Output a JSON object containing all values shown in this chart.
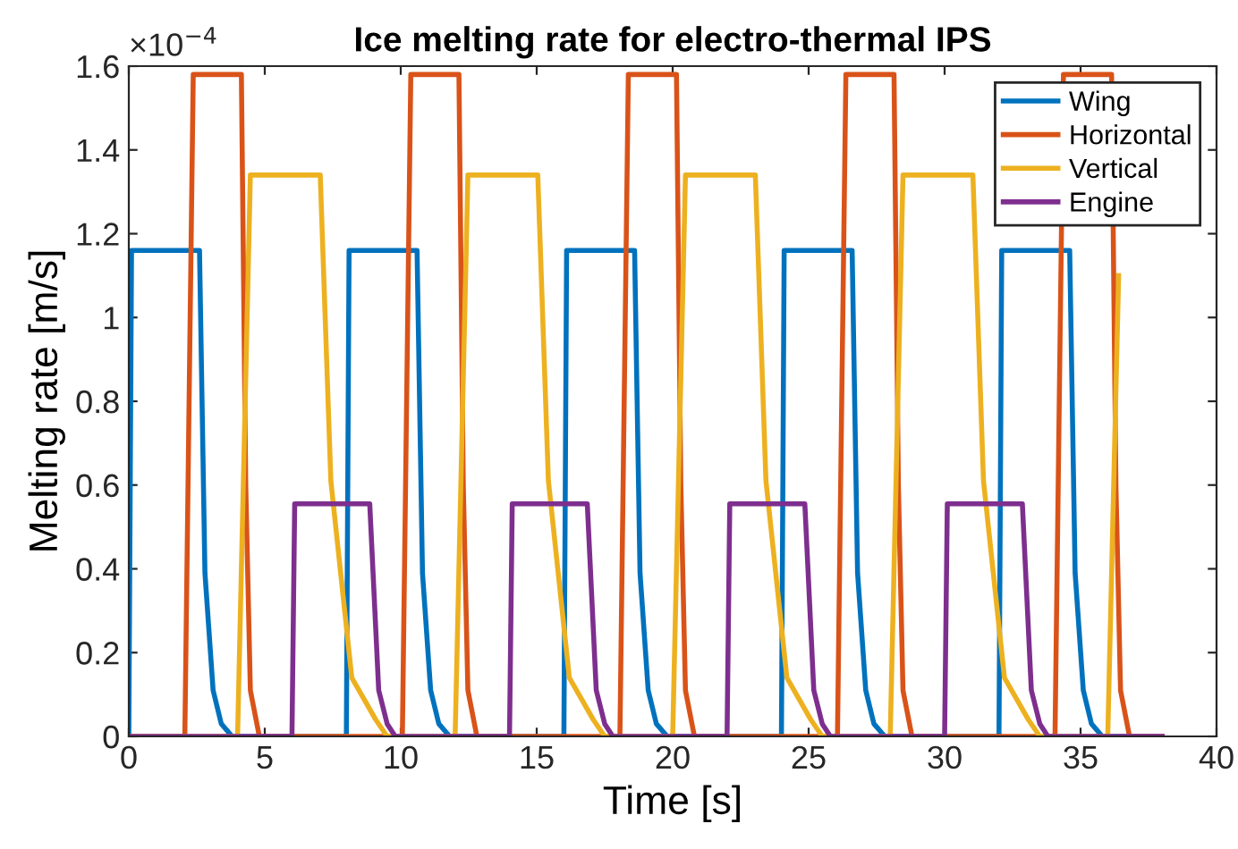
{
  "chart_data": {
    "type": "line",
    "title": "Ice melting rate for electro-thermal IPS",
    "xlabel": "Time [s]",
    "ylabel": "Melting rate [m/s]",
    "annotations": [
      "×10$^{−4}$"
    ],
    "xlim": [
      0,
      40
    ],
    "xticks": [
      0,
      5,
      10,
      15,
      20,
      25,
      30,
      35,
      40
    ],
    "ylim": [
      0,
      1.6
    ],
    "yticks": [
      0,
      0.2,
      0.4,
      0.6,
      0.8,
      1,
      1.2,
      1.4,
      1.6
    ],
    "grid": false,
    "legend": "top right",
    "marker": "none",
    "line_style": "solid",
    "series": [
      {
        "name": "Wing",
        "color": "#0072bd",
        "x": [
          0,
          0.1,
          2.6,
          2.8,
          3.1,
          3.4,
          3.8,
          8,
          8.1,
          10.6,
          10.8,
          11.1,
          11.4,
          11.8,
          16,
          16.1,
          18.6,
          18.8,
          19.1,
          19.4,
          19.8,
          24,
          24.1,
          26.6,
          26.8,
          27.1,
          27.4,
          27.8,
          32,
          32.1,
          34.6,
          34.8,
          35.1,
          35.4,
          35.8,
          38
        ],
        "values": [
          0,
          1.16,
          1.16,
          0.39,
          0.11,
          0.03,
          0,
          0,
          1.16,
          1.16,
          0.39,
          0.11,
          0.03,
          0,
          0,
          1.16,
          1.16,
          0.39,
          0.11,
          0.03,
          0,
          0,
          1.16,
          1.16,
          0.39,
          0.11,
          0.03,
          0,
          0,
          1.16,
          1.16,
          0.39,
          0.11,
          0.03,
          0,
          0
        ]
      },
      {
        "name": "Horizontal",
        "color": "#d95319",
        "x": [
          0,
          2.06,
          2.37,
          4.14,
          4.3,
          4.47,
          4.8,
          10.06,
          10.37,
          12.14,
          12.3,
          12.47,
          12.8,
          18.06,
          18.37,
          20.14,
          20.3,
          20.47,
          20.8,
          26.06,
          26.37,
          28.14,
          28.3,
          28.47,
          28.8,
          34.06,
          34.37,
          36.14,
          36.3,
          36.47,
          36.8,
          38
        ],
        "values": [
          0,
          0,
          1.58,
          1.58,
          0.6,
          0.11,
          0,
          0,
          1.58,
          1.58,
          0.6,
          0.11,
          0,
          0,
          1.58,
          1.58,
          0.6,
          0.11,
          0,
          0,
          1.58,
          1.58,
          0.6,
          0.11,
          0,
          0,
          1.58,
          1.58,
          0.6,
          0.11,
          0,
          0
        ]
      },
      {
        "name": "Vertical",
        "color": "#edb120",
        "x": [
          0,
          4.0,
          4.47,
          7.04,
          7.43,
          8.2,
          9.08,
          9.5,
          12.0,
          12.47,
          15.04,
          15.43,
          16.2,
          17.08,
          17.5,
          20.0,
          20.47,
          23.04,
          23.43,
          24.2,
          25.08,
          25.5,
          28.0,
          28.47,
          31.04,
          31.43,
          32.2,
          33.08,
          33.5,
          36.0,
          36.4
        ],
        "values": [
          0,
          0,
          1.34,
          1.34,
          0.61,
          0.14,
          0.04,
          0,
          0,
          1.34,
          1.34,
          0.61,
          0.14,
          0.04,
          0,
          0,
          1.34,
          1.34,
          0.61,
          0.14,
          0.04,
          0,
          0,
          1.34,
          1.34,
          0.61,
          0.14,
          0.04,
          0,
          0,
          1.1
        ]
      },
      {
        "name": "Engine",
        "color": "#7e2f8e",
        "x": [
          0,
          6.0,
          6.1,
          8.86,
          9.19,
          9.5,
          9.8,
          14.0,
          14.1,
          16.86,
          17.19,
          17.5,
          17.8,
          22.0,
          22.1,
          24.86,
          25.19,
          25.5,
          25.8,
          30.0,
          30.1,
          32.86,
          33.19,
          33.5,
          33.8,
          38
        ],
        "values": [
          0,
          0,
          0.555,
          0.555,
          0.11,
          0.03,
          0,
          0,
          0.555,
          0.555,
          0.11,
          0.03,
          0,
          0,
          0.555,
          0.555,
          0.11,
          0.03,
          0,
          0,
          0.555,
          0.555,
          0.11,
          0.03,
          0,
          0
        ]
      }
    ]
  }
}
